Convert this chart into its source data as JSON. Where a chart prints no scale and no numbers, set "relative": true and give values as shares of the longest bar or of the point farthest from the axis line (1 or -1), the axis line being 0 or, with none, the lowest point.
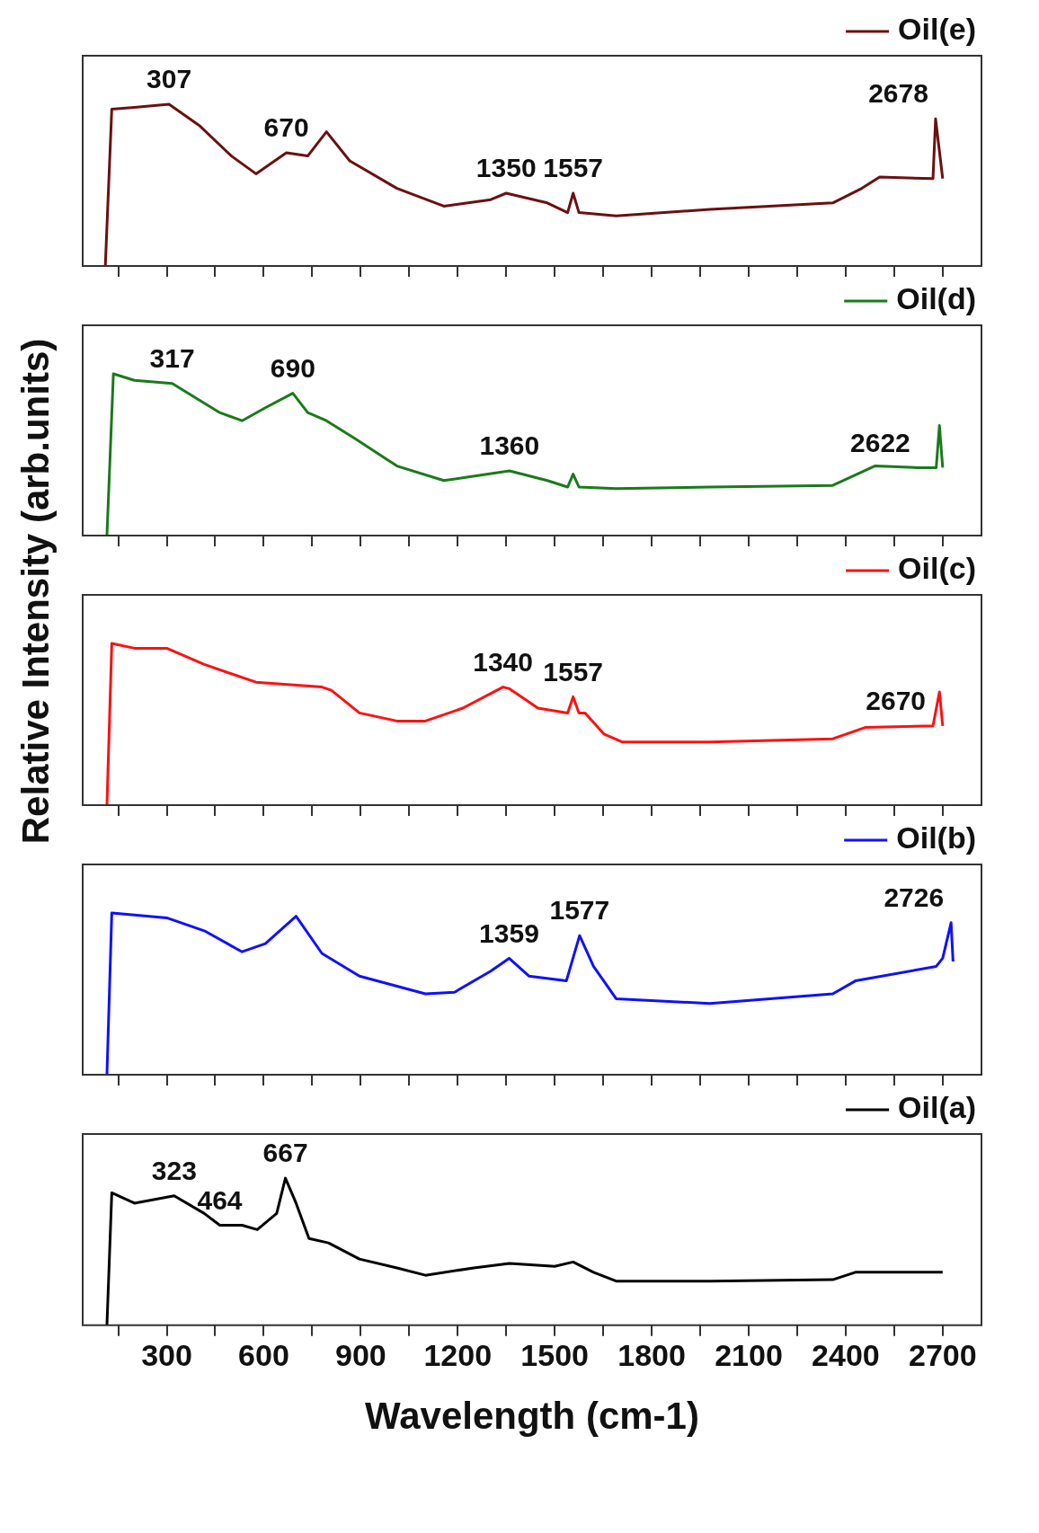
{
  "chart_data": [
    {
      "type": "line",
      "relative": true,
      "xlim": [
        40,
        2820
      ],
      "xticks": [
        {
          "value": 150,
          "label": null
        },
        300,
        {
          "value": 450,
          "label": null
        },
        600,
        {
          "value": 750,
          "label": null
        },
        900,
        {
          "value": 1050,
          "label": null
        },
        1200,
        {
          "value": 1350,
          "label": null
        },
        1500,
        {
          "value": 1650,
          "label": null
        },
        1800,
        {
          "value": 1950,
          "label": null
        },
        2100,
        {
          "value": 2250,
          "label": null
        },
        2400,
        {
          "value": 2550,
          "label": null
        },
        2700
      ],
      "tick_labels": false,
      "grid": false,
      "marker": "none",
      "legend": "top right",
      "series": [
        {
          "name": "Oil(e)",
          "color": "#6b1010",
          "x": [
            110,
            130,
            200,
            307,
            400,
            500,
            576,
            670,
            736,
            794,
            866,
            1012,
            1157,
            1302,
            1350,
            1477,
            1540,
            1557,
            1575,
            1690,
            1980,
            2360,
            2450,
            2505,
            2670,
            2678,
            2700
          ],
          "values": [
            0,
            0.97,
            0.98,
            1.0,
            0.87,
            0.68,
            0.57,
            0.7,
            0.68,
            0.83,
            0.65,
            0.48,
            0.37,
            0.41,
            0.45,
            0.39,
            0.33,
            0.45,
            0.33,
            0.31,
            0.35,
            0.39,
            0.48,
            0.55,
            0.54,
            0.91,
            0.54
          ]
        }
      ],
      "annotations": [
        {
          "text": "307",
          "x": 307,
          "y": 1.0
        },
        {
          "text": "670",
          "x": 670,
          "y": 0.7
        },
        {
          "text": "1350",
          "x": 1350,
          "y": 0.45
        },
        {
          "text": "1557",
          "x": 1557,
          "y": 0.45
        },
        {
          "text": "2678",
          "x": 2678,
          "y": 0.91
        }
      ]
    },
    {
      "type": "line",
      "relative": true,
      "xlim": [
        40,
        2820
      ],
      "xticks": [
        {
          "value": 150,
          "label": null
        },
        300,
        {
          "value": 450,
          "label": null
        },
        600,
        {
          "value": 750,
          "label": null
        },
        900,
        {
          "value": 1050,
          "label": null
        },
        1200,
        {
          "value": 1350,
          "label": null
        },
        1500,
        {
          "value": 1650,
          "label": null
        },
        1800,
        {
          "value": 1950,
          "label": null
        },
        2100,
        {
          "value": 2250,
          "label": null
        },
        2400,
        {
          "value": 2550,
          "label": null
        },
        2700
      ],
      "tick_labels": false,
      "grid": false,
      "marker": "none",
      "legend": "top right",
      "series": [
        {
          "name": "Oil(d)",
          "color": "#1a7a1a",
          "x": [
            115,
            135,
            200,
            317,
            464,
            533,
            605,
            690,
            736,
            794,
            882,
            1012,
            1157,
            1360,
            1477,
            1540,
            1557,
            1575,
            1690,
            1980,
            2360,
            2490,
            2622,
            2680,
            2690,
            2700
          ],
          "values": [
            0,
            1.0,
            0.96,
            0.94,
            0.76,
            0.71,
            0.79,
            0.88,
            0.76,
            0.71,
            0.6,
            0.43,
            0.34,
            0.4,
            0.34,
            0.3,
            0.38,
            0.3,
            0.29,
            0.3,
            0.31,
            0.43,
            0.42,
            0.42,
            0.68,
            0.42
          ]
        }
      ],
      "annotations": [
        {
          "text": "317",
          "x": 317,
          "y": 0.94
        },
        {
          "text": "690",
          "x": 690,
          "y": 0.88
        },
        {
          "text": "1360",
          "x": 1360,
          "y": 0.4
        },
        {
          "text": "2622",
          "x": 2622,
          "y": 0.42
        }
      ]
    },
    {
      "type": "line",
      "relative": true,
      "xlim": [
        40,
        2820
      ],
      "xticks": [
        {
          "value": 150,
          "label": null
        },
        300,
        {
          "value": 450,
          "label": null
        },
        600,
        {
          "value": 750,
          "label": null
        },
        900,
        {
          "value": 1050,
          "label": null
        },
        1200,
        {
          "value": 1350,
          "label": null
        },
        1500,
        {
          "value": 1650,
          "label": null
        },
        1800,
        {
          "value": 1950,
          "label": null
        },
        2100,
        {
          "value": 2250,
          "label": null
        },
        2400,
        {
          "value": 2550,
          "label": null
        },
        2700
      ],
      "tick_labels": false,
      "grid": false,
      "marker": "none",
      "legend": "top right",
      "ylabel": "Relative Intensity (arb.units)",
      "series": [
        {
          "name": "Oil(c)",
          "color": "#ff1010",
          "x": [
            115,
            130,
            200,
            300,
            416,
            576,
            780,
            809,
            896,
            1012,
            1100,
            1216,
            1340,
            1360,
            1448,
            1540,
            1557,
            1575,
            1594,
            1652,
            1710,
            1980,
            2360,
            2460,
            2670,
            2690,
            2700
          ],
          "values": [
            0,
            1.0,
            0.97,
            0.97,
            0.87,
            0.76,
            0.73,
            0.71,
            0.57,
            0.52,
            0.52,
            0.6,
            0.73,
            0.72,
            0.6,
            0.57,
            0.67,
            0.57,
            0.57,
            0.44,
            0.39,
            0.39,
            0.41,
            0.48,
            0.49,
            0.7,
            0.49
          ]
        }
      ],
      "annotations": [
        {
          "text": "1340",
          "x": 1340,
          "y": 0.73
        },
        {
          "text": "1557",
          "x": 1557,
          "y": 0.67
        },
        {
          "text": "2670",
          "x": 2670,
          "y": 0.49
        }
      ]
    },
    {
      "type": "line",
      "relative": true,
      "xlim": [
        40,
        2820
      ],
      "xticks": [
        {
          "value": 150,
          "label": null
        },
        300,
        {
          "value": 450,
          "label": null
        },
        600,
        {
          "value": 750,
          "label": null
        },
        900,
        {
          "value": 1050,
          "label": null
        },
        1200,
        {
          "value": 1350,
          "label": null
        },
        1500,
        {
          "value": 1650,
          "label": null
        },
        1800,
        {
          "value": 1950,
          "label": null
        },
        2100,
        {
          "value": 2250,
          "label": null
        },
        2400,
        {
          "value": 2550,
          "label": null
        },
        2700
      ],
      "tick_labels": false,
      "grid": false,
      "marker": "none",
      "legend": "top right",
      "series": [
        {
          "name": "Oil(b)",
          "color": "#1010ff",
          "x": [
            115,
            130,
            300,
            416,
            533,
            605,
            700,
            780,
            896,
            1100,
            1190,
            1302,
            1359,
            1420,
            1536,
            1577,
            1620,
            1690,
            1980,
            2360,
            2430,
            2680,
            2700,
            2726,
            2732
          ],
          "values": [
            0,
            1.0,
            0.97,
            0.89,
            0.76,
            0.81,
            0.98,
            0.75,
            0.61,
            0.5,
            0.51,
            0.64,
            0.72,
            0.61,
            0.58,
            0.86,
            0.67,
            0.47,
            0.44,
            0.5,
            0.58,
            0.67,
            0.72,
            0.94,
            0.7
          ]
        }
      ],
      "annotations": [
        {
          "text": "1359",
          "x": 1359,
          "y": 0.72
        },
        {
          "text": "1577",
          "x": 1577,
          "y": 0.86
        },
        {
          "text": "2726",
          "x": 2726,
          "y": 0.94
        }
      ]
    },
    {
      "type": "line",
      "relative": true,
      "xlim": [
        40,
        2820
      ],
      "xticks": [
        {
          "value": 150,
          "label": null
        },
        300,
        {
          "value": 450,
          "label": null
        },
        600,
        {
          "value": 750,
          "label": null
        },
        900,
        {
          "value": 1050,
          "label": null
        },
        1200,
        {
          "value": 1350,
          "label": null
        },
        1500,
        {
          "value": 1650,
          "label": null
        },
        1800,
        {
          "value": 1950,
          "label": null
        },
        2100,
        {
          "value": 2250,
          "label": null
        },
        2400,
        {
          "value": 2550,
          "label": null
        },
        2700
      ],
      "tick_labels": "x",
      "grid": false,
      "marker": "none",
      "legend": "top right",
      "xlabel": "Wavelength (cm-1)",
      "series": [
        {
          "name": "Oil(a)",
          "color": "#000000",
          "x": [
            115,
            130,
            200,
            323,
            416,
            464,
            533,
            580,
            640,
            667,
            700,
            740,
            800,
            896,
            1012,
            1100,
            1250,
            1360,
            1500,
            1557,
            1620,
            1690,
            1980,
            2360,
            2430,
            2700
          ],
          "values": [
            0,
            0.9,
            0.83,
            0.88,
            0.76,
            0.68,
            0.68,
            0.65,
            0.76,
            1.0,
            0.83,
            0.59,
            0.56,
            0.45,
            0.39,
            0.34,
            0.39,
            0.42,
            0.4,
            0.43,
            0.36,
            0.3,
            0.3,
            0.31,
            0.36,
            0.36
          ]
        }
      ],
      "annotations": [
        {
          "text": "323",
          "x": 323,
          "y": 0.88
        },
        {
          "text": "667",
          "x": 667,
          "y": 1.0
        },
        {
          "text": "464",
          "x": 464,
          "y": 0.68
        }
      ]
    }
  ]
}
